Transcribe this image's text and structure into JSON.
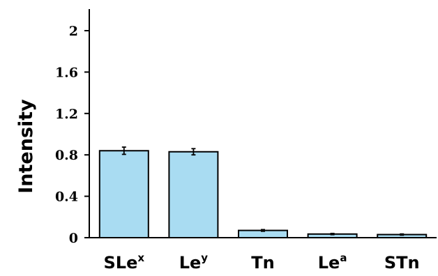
{
  "chart_data": {
    "type": "bar",
    "ylabel": "Intensity",
    "xlabel": "",
    "ylim": [
      0,
      2.2
    ],
    "yticks": [
      0,
      0.4,
      0.8,
      1.2,
      1.6,
      2
    ],
    "ytick_labels": [
      "0",
      "0.4",
      "0.8",
      "1.2",
      "1.6",
      "2"
    ],
    "categories": [
      {
        "base": "SLe",
        "sup": "x"
      },
      {
        "base": "Le",
        "sup": "y"
      },
      {
        "base": "Tn",
        "sup": ""
      },
      {
        "base": "Le",
        "sup": "a"
      },
      {
        "base": "STn",
        "sup": ""
      }
    ],
    "values": [
      0.84,
      0.83,
      0.07,
      0.035,
      0.03
    ],
    "errors": [
      0.035,
      0.03,
      0.008,
      0.006,
      0.006
    ],
    "colors": {
      "bar_fill": "#a9dcf2",
      "bar_stroke": "#000000",
      "axis": "#000000"
    },
    "grid": false,
    "legend": "none"
  }
}
